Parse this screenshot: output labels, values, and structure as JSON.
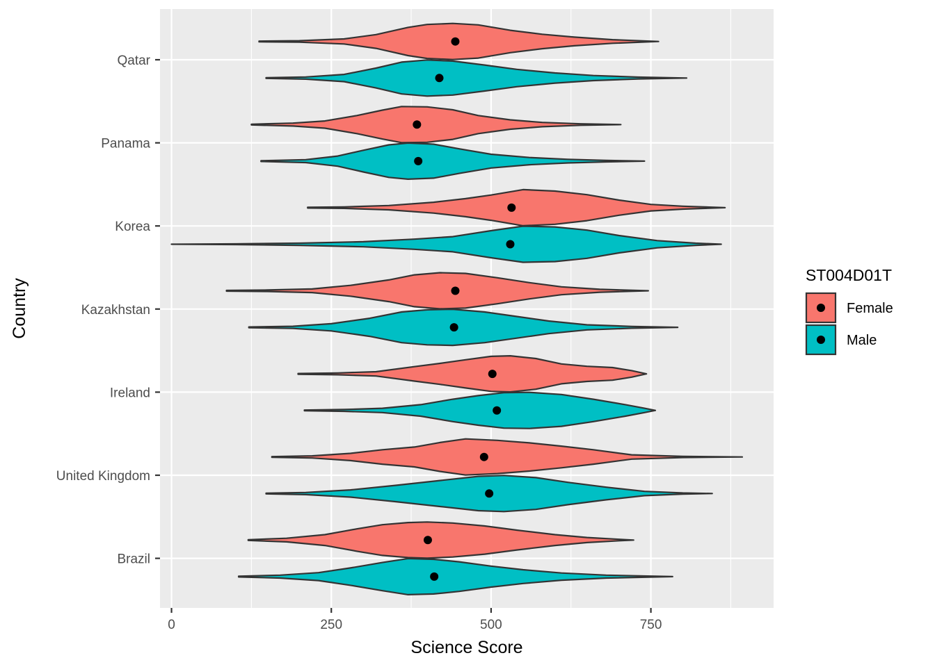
{
  "chart_data": {
    "type": "violin",
    "orientation": "horizontal",
    "title": "",
    "xlabel": "Science Score",
    "ylabel": "Country",
    "xlim": [
      -18,
      942
    ],
    "x_ticks": [
      0,
      250,
      500,
      750
    ],
    "x_tick_labels": [
      "0",
      "250",
      "500",
      "750"
    ],
    "categories": [
      "Brazil",
      "United Kingdom",
      "Ireland",
      "Kazakhstan",
      "Korea",
      "Panama",
      "Qatar"
    ],
    "grid": true,
    "legend": {
      "title": "ST004D01T",
      "position": "right",
      "entries": [
        "Female",
        "Male"
      ]
    },
    "series": [
      {
        "name": "Female",
        "color": "#F8766D",
        "offset": -0.22,
        "groups": [
          {
            "category": "Brazil",
            "min": 120,
            "max": 723,
            "mean": 401,
            "density": [
              [
                120,
                0.02
              ],
              [
                180,
                0.1
              ],
              [
                240,
                0.3
              ],
              [
                290,
                0.62
              ],
              [
                330,
                0.85
              ],
              [
                370,
                0.97
              ],
              [
                400,
                1.0
              ],
              [
                440,
                0.94
              ],
              [
                490,
                0.78
              ],
              [
                540,
                0.55
              ],
              [
                600,
                0.3
              ],
              [
                650,
                0.14
              ],
              [
                700,
                0.04
              ],
              [
                723,
                0.0
              ]
            ]
          },
          {
            "category": "United Kingdom",
            "min": 157,
            "max": 893,
            "mean": 489,
            "density": [
              [
                157,
                0.02
              ],
              [
                220,
                0.06
              ],
              [
                280,
                0.2
              ],
              [
                330,
                0.4
              ],
              [
                380,
                0.55
              ],
              [
                420,
                0.8
              ],
              [
                460,
                1.0
              ],
              [
                510,
                0.92
              ],
              [
                560,
                0.78
              ],
              [
                610,
                0.6
              ],
              [
                660,
                0.4
              ],
              [
                720,
                0.12
              ],
              [
                800,
                0.03
              ],
              [
                893,
                0.0
              ]
            ]
          },
          {
            "category": "Ireland",
            "min": 198,
            "max": 743,
            "mean": 502,
            "density": [
              [
                198,
                0.02
              ],
              [
                260,
                0.05
              ],
              [
                320,
                0.12
              ],
              [
                380,
                0.4
              ],
              [
                420,
                0.58
              ],
              [
                460,
                0.78
              ],
              [
                500,
                0.97
              ],
              [
                530,
                1.0
              ],
              [
                570,
                0.85
              ],
              [
                610,
                0.55
              ],
              [
                650,
                0.42
              ],
              [
                690,
                0.35
              ],
              [
                720,
                0.18
              ],
              [
                743,
                0.0
              ]
            ]
          },
          {
            "category": "Kazakhstan",
            "min": 86,
            "max": 746,
            "mean": 444,
            "density": [
              [
                86,
                0.02
              ],
              [
                150,
                0.04
              ],
              [
                220,
                0.1
              ],
              [
                280,
                0.3
              ],
              [
                340,
                0.6
              ],
              [
                380,
                0.88
              ],
              [
                420,
                1.0
              ],
              [
                460,
                0.96
              ],
              [
                510,
                0.72
              ],
              [
                560,
                0.45
              ],
              [
                610,
                0.22
              ],
              [
                670,
                0.08
              ],
              [
                746,
                0.0
              ]
            ]
          },
          {
            "category": "Korea",
            "min": 213,
            "max": 866,
            "mean": 532,
            "density": [
              [
                213,
                0.02
              ],
              [
                270,
                0.04
              ],
              [
                340,
                0.12
              ],
              [
                410,
                0.3
              ],
              [
                460,
                0.5
              ],
              [
                500,
                0.7
              ],
              [
                550,
                1.0
              ],
              [
                600,
                0.92
              ],
              [
                650,
                0.72
              ],
              [
                700,
                0.42
              ],
              [
                750,
                0.18
              ],
              [
                800,
                0.08
              ],
              [
                866,
                0.0
              ]
            ]
          },
          {
            "category": "Panama",
            "min": 125,
            "max": 703,
            "mean": 384,
            "density": [
              [
                125,
                0.02
              ],
              [
                190,
                0.08
              ],
              [
                240,
                0.2
              ],
              [
                290,
                0.5
              ],
              [
                330,
                0.8
              ],
              [
                360,
                1.0
              ],
              [
                400,
                0.98
              ],
              [
                440,
                0.82
              ],
              [
                480,
                0.5
              ],
              [
                530,
                0.26
              ],
              [
                580,
                0.12
              ],
              [
                640,
                0.04
              ],
              [
                703,
                0.0
              ]
            ]
          },
          {
            "category": "Qatar",
            "min": 137,
            "max": 762,
            "mean": 444,
            "density": [
              [
                137,
                0.02
              ],
              [
                200,
                0.04
              ],
              [
                270,
                0.14
              ],
              [
                320,
                0.38
              ],
              [
                370,
                0.78
              ],
              [
                400,
                0.94
              ],
              [
                440,
                1.0
              ],
              [
                480,
                0.92
              ],
              [
                530,
                0.62
              ],
              [
                580,
                0.4
              ],
              [
                630,
                0.24
              ],
              [
                690,
                0.1
              ],
              [
                762,
                0.0
              ]
            ]
          }
        ]
      },
      {
        "name": "Male",
        "color": "#00BFC4",
        "offset": 0.22,
        "groups": [
          {
            "category": "Brazil",
            "min": 105,
            "max": 784,
            "mean": 411,
            "density": [
              [
                105,
                0.02
              ],
              [
                170,
                0.08
              ],
              [
                230,
                0.22
              ],
              [
                280,
                0.48
              ],
              [
                330,
                0.78
              ],
              [
                370,
                1.0
              ],
              [
                410,
                0.96
              ],
              [
                450,
                0.82
              ],
              [
                500,
                0.58
              ],
              [
                550,
                0.38
              ],
              [
                610,
                0.2
              ],
              [
                680,
                0.08
              ],
              [
                784,
                0.0
              ]
            ]
          },
          {
            "category": "United Kingdom",
            "min": 148,
            "max": 846,
            "mean": 497,
            "density": [
              [
                148,
                0.02
              ],
              [
                210,
                0.06
              ],
              [
                280,
                0.2
              ],
              [
                350,
                0.45
              ],
              [
                420,
                0.72
              ],
              [
                480,
                0.95
              ],
              [
                520,
                1.0
              ],
              [
                570,
                0.88
              ],
              [
                620,
                0.62
              ],
              [
                680,
                0.35
              ],
              [
                740,
                0.12
              ],
              [
                800,
                0.03
              ],
              [
                846,
                0.0
              ]
            ]
          },
          {
            "category": "Ireland",
            "min": 208,
            "max": 757,
            "mean": 509,
            "density": [
              [
                208,
                0.02
              ],
              [
                270,
                0.05
              ],
              [
                330,
                0.12
              ],
              [
                390,
                0.32
              ],
              [
                440,
                0.62
              ],
              [
                480,
                0.82
              ],
              [
                520,
                0.98
              ],
              [
                560,
                1.0
              ],
              [
                610,
                0.88
              ],
              [
                660,
                0.62
              ],
              [
                710,
                0.32
              ],
              [
                740,
                0.12
              ],
              [
                757,
                0.0
              ]
            ]
          },
          {
            "category": "Kazakhstan",
            "min": 121,
            "max": 792,
            "mean": 442,
            "density": [
              [
                121,
                0.02
              ],
              [
                190,
                0.06
              ],
              [
                250,
                0.2
              ],
              [
                310,
                0.5
              ],
              [
                360,
                0.85
              ],
              [
                400,
                0.97
              ],
              [
                440,
                1.0
              ],
              [
                490,
                0.85
              ],
              [
                540,
                0.6
              ],
              [
                590,
                0.35
              ],
              [
                650,
                0.14
              ],
              [
                720,
                0.05
              ],
              [
                792,
                0.0
              ]
            ]
          },
          {
            "category": "Korea",
            "min": 0,
            "max": 860,
            "mean": 530,
            "density": [
              [
                0,
                0.0
              ],
              [
                100,
                0.02
              ],
              [
                200,
                0.06
              ],
              [
                300,
                0.14
              ],
              [
                380,
                0.28
              ],
              [
                440,
                0.42
              ],
              [
                500,
                0.75
              ],
              [
                550,
                1.0
              ],
              [
                600,
                0.96
              ],
              [
                650,
                0.78
              ],
              [
                700,
                0.48
              ],
              [
                760,
                0.2
              ],
              [
                820,
                0.06
              ],
              [
                860,
                0.0
              ]
            ]
          },
          {
            "category": "Panama",
            "min": 140,
            "max": 740,
            "mean": 386,
            "density": [
              [
                140,
                0.02
              ],
              [
                210,
                0.08
              ],
              [
                260,
                0.28
              ],
              [
                300,
                0.6
              ],
              [
                340,
                0.9
              ],
              [
                370,
                1.0
              ],
              [
                410,
                0.94
              ],
              [
                450,
                0.68
              ],
              [
                500,
                0.38
              ],
              [
                560,
                0.2
              ],
              [
                620,
                0.1
              ],
              [
                680,
                0.04
              ],
              [
                740,
                0.0
              ]
            ]
          },
          {
            "category": "Qatar",
            "min": 148,
            "max": 806,
            "mean": 419,
            "density": [
              [
                148,
                0.02
              ],
              [
                210,
                0.06
              ],
              [
                270,
                0.2
              ],
              [
                320,
                0.55
              ],
              [
                360,
                0.88
              ],
              [
                400,
                1.0
              ],
              [
                440,
                0.94
              ],
              [
                490,
                0.72
              ],
              [
                540,
                0.48
              ],
              [
                600,
                0.28
              ],
              [
                660,
                0.14
              ],
              [
                730,
                0.05
              ],
              [
                806,
                0.0
              ]
            ]
          }
        ]
      }
    ]
  }
}
